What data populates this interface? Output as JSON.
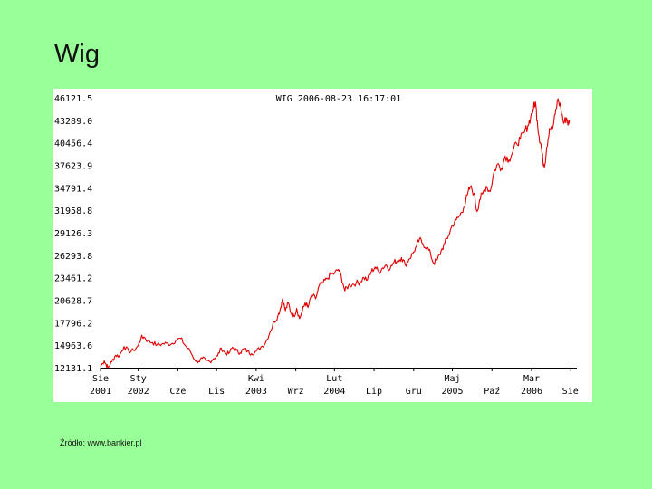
{
  "slide": {
    "title": "Wig",
    "source": "Źródło: www.bankier.pl"
  },
  "chart_data": {
    "type": "line",
    "title": "WIG 2006-08-23 16:17:01",
    "xlabel": "",
    "ylabel": "",
    "grid": false,
    "line_color": "#e00000",
    "y_ticks": [
      46121.5,
      43289.0,
      40456.4,
      37623.9,
      34791.4,
      31958.8,
      29126.3,
      26293.8,
      23461.2,
      20628.7,
      17796.2,
      14963.6,
      12131.1
    ],
    "y_tick_labels": [
      "46121.5",
      "43289.0",
      "40456.4",
      "37623.9",
      "34791.4",
      "31958.8",
      "29126.3",
      "26293.8",
      "23461.2",
      "20628.7",
      "17796.2",
      "14963.6",
      "12131.1"
    ],
    "ylim": [
      12131.1,
      46121.5
    ],
    "xlim": [
      2001.6,
      2006.65
    ],
    "x_ticks": [
      {
        "line1": "Sie",
        "line2": "2001",
        "t": 2001.6
      },
      {
        "line1": "Sty",
        "line2": "2002",
        "t": 2002.0
      },
      {
        "line1": "",
        "line2": "Cze",
        "t": 2002.42
      },
      {
        "line1": "",
        "line2": "Lis",
        "t": 2002.83
      },
      {
        "line1": "Kwi",
        "line2": "2003",
        "t": 2003.25
      },
      {
        "line1": "",
        "line2": "Wrz",
        "t": 2003.67
      },
      {
        "line1": "Lut",
        "line2": "2004",
        "t": 2004.08
      },
      {
        "line1": "",
        "line2": "Lip",
        "t": 2004.5
      },
      {
        "line1": "",
        "line2": "Gru",
        "t": 2004.92
      },
      {
        "line1": "Maj",
        "line2": "2005",
        "t": 2005.33
      },
      {
        "line1": "",
        "line2": "Paź",
        "t": 2005.75
      },
      {
        "line1": "Mar",
        "line2": "2006",
        "t": 2006.17
      },
      {
        "line1": "",
        "line2": "Sie",
        "t": 2006.58
      }
    ],
    "series": [
      {
        "name": "WIG",
        "points": [
          [
            2001.6,
            12300
          ],
          [
            2001.64,
            13000
          ],
          [
            2001.66,
            12500
          ],
          [
            2001.68,
            12150
          ],
          [
            2001.72,
            12900
          ],
          [
            2001.76,
            13700
          ],
          [
            2001.8,
            13600
          ],
          [
            2001.85,
            14800
          ],
          [
            2001.9,
            14200
          ],
          [
            2001.95,
            14300
          ],
          [
            2002.0,
            14900
          ],
          [
            2002.03,
            15900
          ],
          [
            2002.06,
            16000
          ],
          [
            2002.1,
            15500
          ],
          [
            2002.15,
            15300
          ],
          [
            2002.2,
            15000
          ],
          [
            2002.25,
            15100
          ],
          [
            2002.3,
            15200
          ],
          [
            2002.35,
            15100
          ],
          [
            2002.4,
            15600
          ],
          [
            2002.45,
            15800
          ],
          [
            2002.5,
            14900
          ],
          [
            2002.55,
            14200
          ],
          [
            2002.6,
            13100
          ],
          [
            2002.64,
            12900
          ],
          [
            2002.68,
            13300
          ],
          [
            2002.72,
            13000
          ],
          [
            2002.76,
            12900
          ],
          [
            2002.8,
            13300
          ],
          [
            2002.84,
            13600
          ],
          [
            2002.88,
            14600
          ],
          [
            2002.92,
            14000
          ],
          [
            2002.96,
            13900
          ],
          [
            2003.0,
            14700
          ],
          [
            2003.04,
            14300
          ],
          [
            2003.08,
            14000
          ],
          [
            2003.12,
            14500
          ],
          [
            2003.16,
            14200
          ],
          [
            2003.2,
            13900
          ],
          [
            2003.25,
            14200
          ],
          [
            2003.3,
            14700
          ],
          [
            2003.35,
            15300
          ],
          [
            2003.4,
            16700
          ],
          [
            2003.44,
            17900
          ],
          [
            2003.48,
            18600
          ],
          [
            2003.51,
            19700
          ],
          [
            2003.53,
            20800
          ],
          [
            2003.56,
            19300
          ],
          [
            2003.59,
            20300
          ],
          [
            2003.62,
            19000
          ],
          [
            2003.65,
            18600
          ],
          [
            2003.68,
            19600
          ],
          [
            2003.71,
            18300
          ],
          [
            2003.74,
            19300
          ],
          [
            2003.77,
            20300
          ],
          [
            2003.8,
            19700
          ],
          [
            2003.84,
            21300
          ],
          [
            2003.88,
            20800
          ],
          [
            2003.92,
            22500
          ],
          [
            2003.96,
            22800
          ],
          [
            2004.0,
            23300
          ],
          [
            2004.04,
            23900
          ],
          [
            2004.08,
            24000
          ],
          [
            2004.12,
            24500
          ],
          [
            2004.15,
            23800
          ],
          [
            2004.19,
            21800
          ],
          [
            2004.23,
            22500
          ],
          [
            2004.27,
            22600
          ],
          [
            2004.31,
            22800
          ],
          [
            2004.35,
            22900
          ],
          [
            2004.39,
            23500
          ],
          [
            2004.43,
            23200
          ],
          [
            2004.47,
            24200
          ],
          [
            2004.51,
            24800
          ],
          [
            2004.55,
            24200
          ],
          [
            2004.59,
            24700
          ],
          [
            2004.63,
            25100
          ],
          [
            2004.67,
            24600
          ],
          [
            2004.71,
            25400
          ],
          [
            2004.75,
            25600
          ],
          [
            2004.79,
            26000
          ],
          [
            2004.83,
            25100
          ],
          [
            2004.87,
            25800
          ],
          [
            2004.91,
            26500
          ],
          [
            2004.95,
            27400
          ],
          [
            2004.98,
            28300
          ],
          [
            2005.02,
            27700
          ],
          [
            2005.06,
            27300
          ],
          [
            2005.1,
            26400
          ],
          [
            2005.13,
            25300
          ],
          [
            2005.17,
            25700
          ],
          [
            2005.21,
            26800
          ],
          [
            2005.25,
            27800
          ],
          [
            2005.29,
            28800
          ],
          [
            2005.33,
            30100
          ],
          [
            2005.37,
            30700
          ],
          [
            2005.41,
            31300
          ],
          [
            2005.45,
            32300
          ],
          [
            2005.49,
            33900
          ],
          [
            2005.52,
            34900
          ],
          [
            2005.56,
            34100
          ],
          [
            2005.59,
            31800
          ],
          [
            2005.62,
            33300
          ],
          [
            2005.65,
            34000
          ],
          [
            2005.69,
            35000
          ],
          [
            2005.73,
            34300
          ],
          [
            2005.77,
            36700
          ],
          [
            2005.81,
            37800
          ],
          [
            2005.85,
            37200
          ],
          [
            2005.89,
            38800
          ],
          [
            2005.93,
            38300
          ],
          [
            2005.97,
            39300
          ],
          [
            2006.01,
            40400
          ],
          [
            2006.05,
            40900
          ],
          [
            2006.09,
            41700
          ],
          [
            2006.13,
            42600
          ],
          [
            2006.16,
            43700
          ],
          [
            2006.19,
            44800
          ],
          [
            2006.21,
            45600
          ],
          [
            2006.23,
            43200
          ],
          [
            2006.25,
            41200
          ],
          [
            2006.27,
            40200
          ],
          [
            2006.29,
            38100
          ],
          [
            2006.31,
            37700
          ],
          [
            2006.33,
            39900
          ],
          [
            2006.36,
            42300
          ],
          [
            2006.39,
            42100
          ],
          [
            2006.42,
            44000
          ],
          [
            2006.45,
            46000
          ],
          [
            2006.48,
            44800
          ],
          [
            2006.51,
            42900
          ],
          [
            2006.54,
            43600
          ],
          [
            2006.56,
            42800
          ],
          [
            2006.58,
            43300
          ]
        ]
      }
    ]
  }
}
